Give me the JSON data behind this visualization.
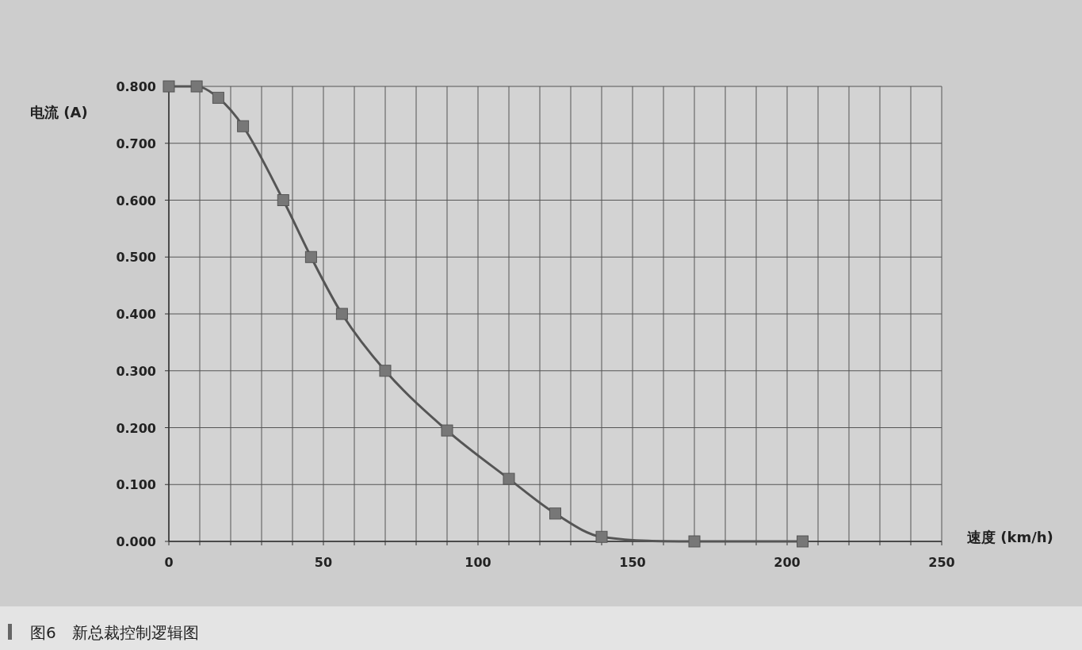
{
  "chart_data": {
    "type": "line",
    "title": "图6　新总裁控制逻辑图",
    "xlabel": "速度 (km/h)",
    "ylabel": "电流 (A)",
    "x": [
      0,
      9,
      16,
      24,
      37,
      46,
      56,
      70,
      90,
      110,
      125,
      140,
      170,
      205
    ],
    "series": [
      {
        "color": "#555555",
        "values": [
          0.8,
          0.8,
          0.78,
          0.73,
          0.6,
          0.5,
          0.4,
          0.3,
          0.195,
          0.11,
          0.049,
          0.008,
          0,
          0
        ]
      }
    ],
    "marker": "square",
    "line_style": "solid",
    "grid": true,
    "xlim": [
      0,
      250
    ],
    "xticks": [
      0,
      {
        "value": 10,
        "label": null
      },
      {
        "value": 20,
        "label": null
      },
      {
        "value": 30,
        "label": null
      },
      {
        "value": 40,
        "label": null
      },
      50,
      {
        "value": 60,
        "label": null
      },
      {
        "value": 70,
        "label": null
      },
      {
        "value": 80,
        "label": null
      },
      {
        "value": 90,
        "label": null
      },
      100,
      {
        "value": 110,
        "label": null
      },
      {
        "value": 120,
        "label": null
      },
      {
        "value": 130,
        "label": null
      },
      {
        "value": 140,
        "label": null
      },
      150,
      {
        "value": 160,
        "label": null
      },
      {
        "value": 170,
        "label": null
      },
      {
        "value": 180,
        "label": null
      },
      {
        "value": 190,
        "label": null
      },
      200,
      {
        "value": 210,
        "label": null
      },
      {
        "value": 220,
        "label": null
      },
      {
        "value": 230,
        "label": null
      },
      {
        "value": 240,
        "label": null
      },
      250
    ],
    "ylim": [
      0,
      0.8
    ],
    "yticks": [
      {
        "value": 0,
        "label": "0.000"
      },
      {
        "value": 0.1,
        "label": "0.100"
      },
      {
        "value": 0.2,
        "label": "0.200"
      },
      {
        "value": 0.3,
        "label": "0.300"
      },
      {
        "value": 0.4,
        "label": "0.400"
      },
      {
        "value": 0.5,
        "label": "0.500"
      },
      {
        "value": 0.6,
        "label": "0.600"
      },
      {
        "value": 0.7,
        "label": "0.700"
      },
      {
        "value": 0.8,
        "label": "0.800"
      }
    ]
  }
}
